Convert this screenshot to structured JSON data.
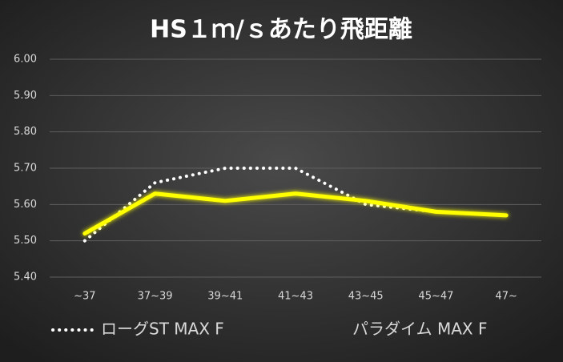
{
  "chart_data": {
    "type": "line",
    "title": "HS１ｍ/ｓあたり飛距離",
    "categories": [
      "~37",
      "37~39",
      "39~41",
      "41~43",
      "43~45",
      "45~47",
      "47~"
    ],
    "series": [
      {
        "name": "ローグST MAX F",
        "color": "#ffffff",
        "style": "dotted",
        "values": [
          5.5,
          5.66,
          5.7,
          5.7,
          5.6,
          5.58,
          5.57
        ]
      },
      {
        "name": "パラダイム MAX F",
        "color": "#ffff00",
        "style": "solid",
        "values": [
          5.52,
          5.63,
          5.61,
          5.63,
          5.61,
          5.58,
          5.57
        ]
      }
    ],
    "ylim": [
      5.4,
      6.0
    ],
    "yticks": [
      {
        "value": 5.4,
        "label": "5.40"
      },
      {
        "value": 5.5,
        "label": "5.50"
      },
      {
        "value": 5.6,
        "label": "5.60"
      },
      {
        "value": 5.7,
        "label": "5.70"
      },
      {
        "value": 5.8,
        "label": "5.80"
      },
      {
        "value": 5.9,
        "label": "5.90"
      },
      {
        "value": 6.0,
        "label": "6.00"
      }
    ],
    "grid": true,
    "legend": "bottom"
  }
}
